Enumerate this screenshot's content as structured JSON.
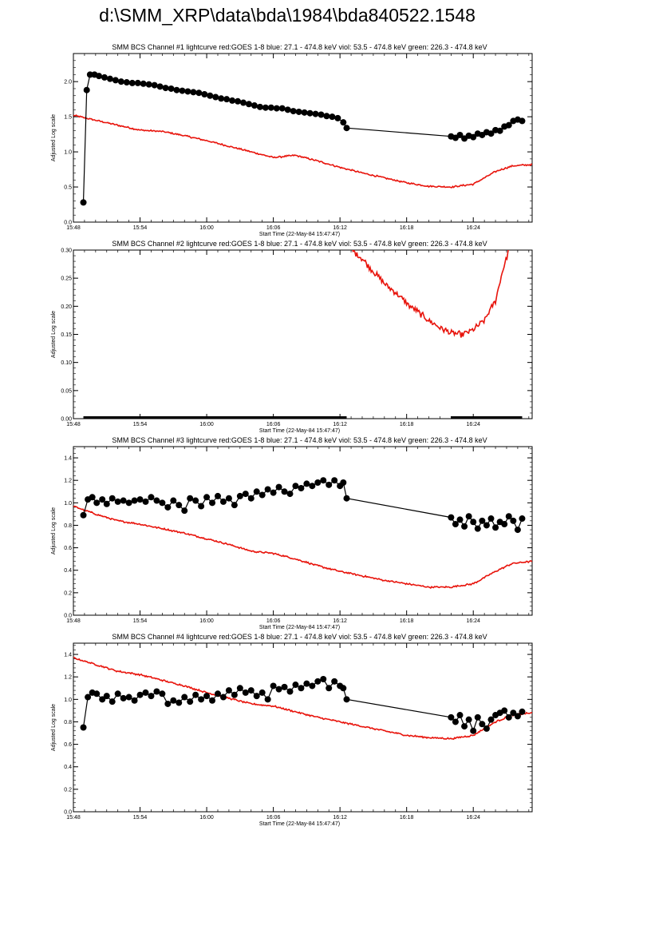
{
  "page": {
    "title": "d:\\SMM_XRP\\data\\bda\\1984\\bda840522.1548"
  },
  "style": {
    "red_color": "#e8140c",
    "black_color": "#000000"
  },
  "x_ticks": [
    "15:48",
    "15:54",
    "16:00",
    "16:06",
    "16:12",
    "16:18",
    "16:24"
  ],
  "chart_data": [
    {
      "type": "line",
      "title": "SMM BCS Channel #1 lightcurve  red:GOES 1-8  blue: 27.1 - 474.8 keV  viol: 53.5 - 474.8 keV  green: 226.3 - 474.8 keV",
      "xlabel": "Start Time (22-May-84 15:47:47)",
      "ylabel": "Adjusted Log scale",
      "xlim": [
        0,
        41.3
      ],
      "ylim": [
        0,
        2.4
      ],
      "y_ticks": [
        "0.0",
        "0.5",
        "1.0",
        "1.5",
        "2.0"
      ],
      "y_tick_values": [
        0,
        0.5,
        1.0,
        1.5,
        2.0
      ],
      "series": [
        {
          "color": "red",
          "x": [
            0,
            2,
            4,
            6,
            8,
            10,
            12,
            14,
            16,
            18,
            20,
            22,
            24,
            26,
            28,
            30,
            32,
            34,
            36,
            38,
            39.5,
            41.3
          ],
          "y": [
            1.52,
            1.45,
            1.38,
            1.31,
            1.29,
            1.23,
            1.16,
            1.08,
            1.0,
            0.92,
            0.95,
            0.87,
            0.78,
            0.7,
            0.63,
            0.56,
            0.51,
            0.5,
            0.54,
            0.72,
            0.8,
            0.82
          ],
          "noise": 0.012
        },
        {
          "color": "black",
          "marker": "circle",
          "x": [
            0.9,
            1.2,
            1.5,
            1.9,
            2.3,
            2.8,
            3.3,
            3.8,
            4.3,
            4.8,
            5.3,
            5.8,
            6.3,
            6.8,
            7.3,
            7.8,
            8.3,
            8.8,
            9.3,
            9.8,
            10.3,
            10.8,
            11.3,
            11.8,
            12.3,
            12.8,
            13.3,
            13.8,
            14.3,
            14.8,
            15.3,
            15.8,
            16.3,
            16.8,
            17.3,
            17.8,
            18.3,
            18.8,
            19.3,
            19.8,
            20.3,
            20.8,
            21.3,
            21.8,
            22.3,
            22.8,
            23.3,
            23.8,
            24.3,
            24.6,
            34.0,
            34.4,
            34.8,
            35.2,
            35.6,
            36.0,
            36.4,
            36.8,
            37.2,
            37.6,
            38.0,
            38.4,
            38.8,
            39.2,
            39.6,
            40.0,
            40.4
          ],
          "y": [
            0.28,
            1.88,
            2.1,
            2.1,
            2.08,
            2.06,
            2.04,
            2.02,
            2.0,
            1.99,
            1.98,
            1.98,
            1.97,
            1.96,
            1.95,
            1.93,
            1.91,
            1.9,
            1.88,
            1.87,
            1.86,
            1.85,
            1.84,
            1.82,
            1.8,
            1.78,
            1.76,
            1.75,
            1.73,
            1.72,
            1.7,
            1.68,
            1.66,
            1.64,
            1.63,
            1.63,
            1.62,
            1.62,
            1.6,
            1.58,
            1.57,
            1.56,
            1.55,
            1.54,
            1.53,
            1.51,
            1.5,
            1.48,
            1.42,
            1.34,
            1.22,
            1.2,
            1.24,
            1.19,
            1.23,
            1.21,
            1.26,
            1.24,
            1.28,
            1.26,
            1.31,
            1.3,
            1.36,
            1.38,
            1.44,
            1.46,
            1.44
          ]
        }
      ]
    },
    {
      "type": "line",
      "title": "SMM BCS Channel #2 lightcurve  red:GOES 1-8  blue: 27.1 - 474.8 keV  viol: 53.5 - 474.8 keV  green: 226.3 - 474.8 keV",
      "xlabel": "Start Time (22-May-84 15:47:47)",
      "ylabel": "Adjusted Log scale",
      "xlim": [
        0,
        41.3
      ],
      "ylim": [
        0,
        0.3
      ],
      "y_ticks": [
        "0.00",
        "0.05",
        "0.10",
        "0.15",
        "0.20",
        "0.25",
        "0.30"
      ],
      "y_tick_values": [
        0,
        0.05,
        0.1,
        0.15,
        0.2,
        0.25,
        0.3
      ],
      "series": [
        {
          "color": "red",
          "x": [
            25.0,
            26.0,
            27.0,
            28.0,
            29.0,
            30.0,
            31.0,
            32.0,
            33.0,
            34.0,
            35.0,
            36.0,
            37.0,
            38.0,
            38.6,
            39.2
          ],
          "y": [
            0.301,
            0.285,
            0.262,
            0.24,
            0.225,
            0.205,
            0.19,
            0.175,
            0.162,
            0.152,
            0.15,
            0.158,
            0.175,
            0.21,
            0.26,
            0.301
          ],
          "noise": 0.006
        },
        {
          "color": "black",
          "marker": "band",
          "segments": [
            [
              0.9,
              24.6
            ],
            [
              34.0,
              40.4
            ]
          ],
          "y": 0
        }
      ]
    },
    {
      "type": "line",
      "title": "SMM BCS Channel #3 lightcurve  red:GOES 1-8  blue: 27.1 - 474.8 keV  viol: 53.5 - 474.8 keV  green: 226.3 - 474.8 keV",
      "xlabel": "Start Time (22-May-84 15:47:47)",
      "ylabel": "Adjusted Log scale",
      "xlim": [
        0,
        41.3
      ],
      "ylim": [
        0,
        1.5
      ],
      "y_ticks": [
        "0.0",
        "0.2",
        "0.4",
        "0.6",
        "0.8",
        "1.0",
        "1.2",
        "1.4"
      ],
      "y_tick_values": [
        0,
        0.2,
        0.4,
        0.6,
        0.8,
        1.0,
        1.2,
        1.4
      ],
      "series": [
        {
          "color": "red",
          "x": [
            0,
            2,
            4,
            6,
            8,
            10,
            12,
            14,
            16,
            18,
            20,
            22,
            24,
            26,
            28,
            30,
            32,
            34,
            36,
            38,
            39.5,
            41.3
          ],
          "y": [
            0.97,
            0.9,
            0.84,
            0.81,
            0.77,
            0.73,
            0.68,
            0.63,
            0.57,
            0.55,
            0.5,
            0.44,
            0.39,
            0.35,
            0.31,
            0.28,
            0.25,
            0.25,
            0.28,
            0.39,
            0.46,
            0.48
          ],
          "noise": 0.008
        },
        {
          "color": "black",
          "marker": "circle",
          "x": [
            0.9,
            1.3,
            1.7,
            2.1,
            2.6,
            3.0,
            3.5,
            4.0,
            4.5,
            5.0,
            5.5,
            6.0,
            6.5,
            7.0,
            7.5,
            8.0,
            8.5,
            9.0,
            9.5,
            10.0,
            10.5,
            11.0,
            11.5,
            12.0,
            12.5,
            13.0,
            13.5,
            14.0,
            14.5,
            15.0,
            15.5,
            16.0,
            16.5,
            17.0,
            17.5,
            18.0,
            18.5,
            19.0,
            19.5,
            20.0,
            20.5,
            21.0,
            21.5,
            22.0,
            22.5,
            23.0,
            23.5,
            24.0,
            24.3,
            24.6,
            34.0,
            34.4,
            34.8,
            35.2,
            35.6,
            36.0,
            36.4,
            36.8,
            37.2,
            37.6,
            38.0,
            38.4,
            38.8,
            39.2,
            39.6,
            40.0,
            40.4
          ],
          "y": [
            0.89,
            1.03,
            1.05,
            1.0,
            1.03,
            0.99,
            1.04,
            1.01,
            1.02,
            1.0,
            1.02,
            1.03,
            1.01,
            1.05,
            1.02,
            1.0,
            0.96,
            1.02,
            0.98,
            0.93,
            1.04,
            1.02,
            0.97,
            1.05,
            1.0,
            1.06,
            1.01,
            1.04,
            0.98,
            1.06,
            1.08,
            1.04,
            1.1,
            1.07,
            1.12,
            1.09,
            1.14,
            1.1,
            1.08,
            1.15,
            1.13,
            1.17,
            1.15,
            1.18,
            1.2,
            1.16,
            1.2,
            1.15,
            1.18,
            1.04,
            0.87,
            0.81,
            0.85,
            0.79,
            0.88,
            0.83,
            0.77,
            0.84,
            0.8,
            0.86,
            0.78,
            0.83,
            0.81,
            0.88,
            0.84,
            0.76,
            0.86
          ]
        }
      ]
    },
    {
      "type": "line",
      "title": "SMM BCS Channel #4 lightcurve  red:GOES 1-8  blue: 27.1 - 474.8 keV  viol: 53.5 - 474.8 keV  green: 226.3 - 474.8 keV",
      "xlabel": "Start Time (22-May-84 15:47:47)",
      "ylabel": "Adjusted Log scale",
      "xlim": [
        0,
        41.3
      ],
      "ylim": [
        0,
        1.5
      ],
      "y_ticks": [
        "0.0",
        "0.2",
        "0.4",
        "0.6",
        "0.8",
        "1.0",
        "1.2",
        "1.4"
      ],
      "y_tick_values": [
        0,
        0.2,
        0.4,
        0.6,
        0.8,
        1.0,
        1.2,
        1.4
      ],
      "series": [
        {
          "color": "red",
          "x": [
            0,
            2,
            4,
            6,
            8,
            10,
            12,
            14,
            16,
            18,
            20,
            22,
            24,
            26,
            28,
            30,
            32,
            34,
            36,
            38,
            39.5,
            41.3
          ],
          "y": [
            1.37,
            1.31,
            1.25,
            1.22,
            1.17,
            1.12,
            1.06,
            1.01,
            0.96,
            0.94,
            0.89,
            0.84,
            0.8,
            0.76,
            0.72,
            0.68,
            0.66,
            0.65,
            0.68,
            0.8,
            0.86,
            0.88
          ],
          "noise": 0.008
        },
        {
          "color": "black",
          "marker": "circle",
          "x": [
            0.9,
            1.3,
            1.7,
            2.1,
            2.6,
            3.0,
            3.5,
            4.0,
            4.5,
            5.0,
            5.5,
            6.0,
            6.5,
            7.0,
            7.5,
            8.0,
            8.5,
            9.0,
            9.5,
            10.0,
            10.5,
            11.0,
            11.5,
            12.0,
            12.5,
            13.0,
            13.5,
            14.0,
            14.5,
            15.0,
            15.5,
            16.0,
            16.5,
            17.0,
            17.5,
            18.0,
            18.5,
            19.0,
            19.5,
            20.0,
            20.5,
            21.0,
            21.5,
            22.0,
            22.5,
            23.0,
            23.5,
            24.0,
            24.3,
            24.6,
            34.0,
            34.4,
            34.8,
            35.2,
            35.6,
            36.0,
            36.4,
            36.8,
            37.2,
            37.6,
            38.0,
            38.4,
            38.8,
            39.2,
            39.6,
            40.0,
            40.4
          ],
          "y": [
            0.75,
            1.02,
            1.06,
            1.05,
            1.0,
            1.03,
            0.98,
            1.05,
            1.01,
            1.02,
            0.99,
            1.04,
            1.06,
            1.03,
            1.07,
            1.05,
            0.96,
            0.99,
            0.97,
            1.02,
            0.98,
            1.04,
            1.0,
            1.03,
            0.99,
            1.05,
            1.02,
            1.08,
            1.04,
            1.1,
            1.06,
            1.08,
            1.03,
            1.06,
            1.0,
            1.12,
            1.09,
            1.11,
            1.07,
            1.13,
            1.1,
            1.14,
            1.12,
            1.16,
            1.18,
            1.1,
            1.16,
            1.12,
            1.1,
            1.0,
            0.84,
            0.8,
            0.86,
            0.76,
            0.82,
            0.72,
            0.84,
            0.78,
            0.74,
            0.82,
            0.86,
            0.88,
            0.9,
            0.84,
            0.88,
            0.85,
            0.89
          ]
        }
      ]
    }
  ]
}
